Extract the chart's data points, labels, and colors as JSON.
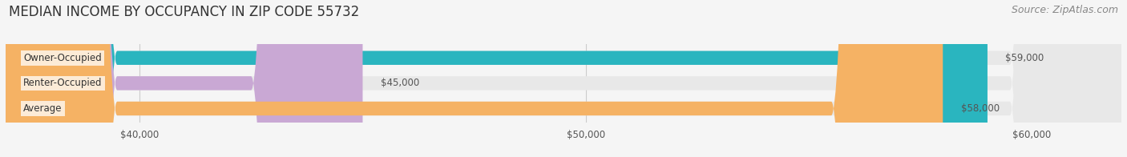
{
  "title": "MEDIAN INCOME BY OCCUPANCY IN ZIP CODE 55732",
  "source": "Source: ZipAtlas.com",
  "categories": [
    "Owner-Occupied",
    "Renter-Occupied",
    "Average"
  ],
  "values": [
    59000,
    45000,
    58000
  ],
  "bar_colors": [
    "#2ab5bf",
    "#c9a8d4",
    "#f5b264"
  ],
  "value_labels": [
    "$59,000",
    "$45,000",
    "$58,000"
  ],
  "xlim": [
    37000,
    62000
  ],
  "xticks": [
    40000,
    50000,
    60000
  ],
  "xtick_labels": [
    "$40,000",
    "$50,000",
    "$60,000"
  ],
  "bar_height": 0.55,
  "background_color": "#f5f5f5",
  "bar_bg_color": "#e8e8e8",
  "title_fontsize": 12,
  "source_fontsize": 9,
  "label_fontsize": 8.5,
  "value_fontsize": 8.5,
  "tick_fontsize": 8.5
}
